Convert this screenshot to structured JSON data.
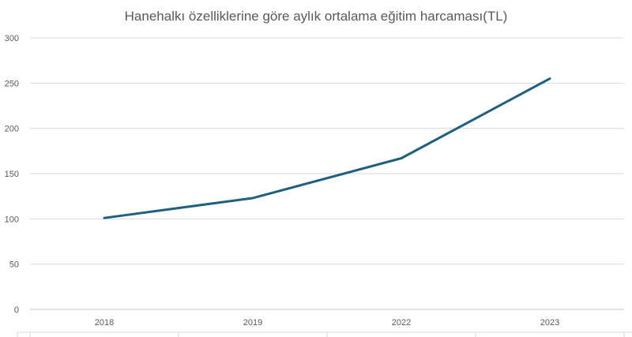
{
  "chart_data": {
    "type": "line",
    "title": "Hanehalkı özelliklerine göre aylık ortalama eğitim harcaması(TL)",
    "xlabel": "",
    "ylabel": "",
    "categories": [
      "2018",
      "2019",
      "2022",
      "2023"
    ],
    "series": [
      {
        "values": [
          101,
          123,
          167,
          255
        ],
        "color": "#1f5f7f"
      }
    ],
    "ylim": [
      0,
      300
    ],
    "yticks": [
      0,
      50,
      100,
      150,
      200,
      250,
      300
    ],
    "grid": true,
    "legend": "none"
  }
}
